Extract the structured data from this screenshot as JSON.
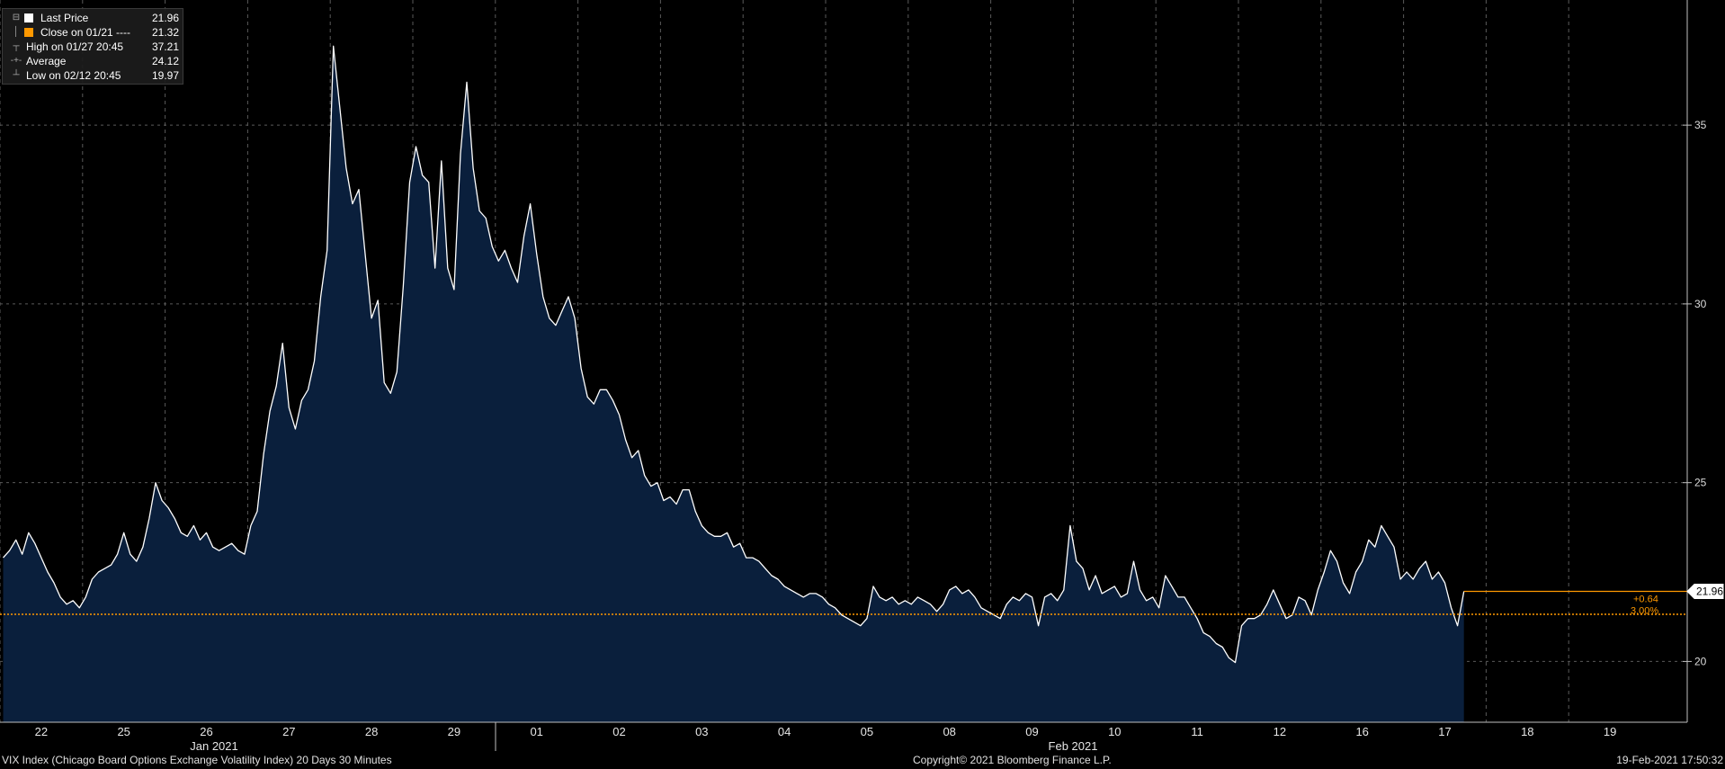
{
  "legend": {
    "last_price_label": "Last Price",
    "last_price_value": "21.96",
    "close_label": "Close on 01/21 ----",
    "close_value": "21.32",
    "high_label": "High on 01/27 20:45",
    "high_value": "37.21",
    "average_label": "Average",
    "average_value": "24.12",
    "low_label": "Low on 02/12 20:45",
    "low_value": "19.97"
  },
  "footer": {
    "security": "VIX Index (Chicago Board Options Exchange Volatility Index) 20 Days 30 Minutes",
    "copyright": "Copyright© 2021 Bloomberg Finance L.P.",
    "timestamp": "19-Feb-2021 17:50:32"
  },
  "colors": {
    "background": "#000000",
    "area_fill": "#0a1f3c",
    "line": "#ffffff",
    "reference": "#ff9900",
    "grid": "#5a5a5a"
  },
  "chart_data": {
    "type": "area",
    "x_tick_labels": [
      "22",
      "25",
      "26",
      "27",
      "28",
      "29",
      "01",
      "02",
      "03",
      "04",
      "05",
      "08",
      "09",
      "10",
      "11",
      "12",
      "16",
      "17",
      "18",
      "19"
    ],
    "month_labels": [
      "Jan 2021",
      "Feb 2021"
    ],
    "y_ticks": [
      20,
      25,
      30,
      35
    ],
    "ylim": [
      18.3,
      38.5
    ],
    "grid": true,
    "reference_line": {
      "label": "Close on 01/21",
      "value": 21.32
    },
    "last_value_label": "21.96",
    "change_label": "+0.64",
    "change_pct_label": "3.00%",
    "series": [
      {
        "name": "Last Price",
        "points_per_day": 13,
        "values": [
          22.9,
          23.1,
          23.4,
          23.0,
          23.6,
          23.3,
          22.9,
          22.5,
          22.2,
          21.8,
          21.6,
          21.7,
          21.5,
          21.8,
          22.3,
          22.5,
          22.6,
          22.7,
          23.0,
          23.6,
          23.0,
          22.8,
          23.2,
          24.0,
          25.0,
          24.5,
          24.3,
          24.0,
          23.6,
          23.5,
          23.8,
          23.4,
          23.6,
          23.2,
          23.1,
          23.2,
          23.3,
          23.1,
          23.0,
          23.8,
          24.2,
          25.8,
          27.0,
          27.7,
          28.9,
          27.1,
          26.5,
          27.3,
          27.6,
          28.4,
          30.2,
          31.5,
          37.21,
          35.5,
          33.8,
          32.8,
          33.2,
          31.4,
          29.6,
          30.1,
          27.8,
          27.5,
          28.1,
          30.5,
          33.4,
          34.4,
          33.6,
          33.4,
          31.0,
          34.0,
          31.0,
          30.4,
          34.2,
          36.2,
          33.8,
          32.6,
          32.4,
          31.6,
          31.2,
          31.5,
          31.0,
          30.6,
          31.9,
          32.8,
          31.4,
          30.2,
          29.6,
          29.4,
          29.8,
          30.2,
          29.6,
          28.2,
          27.4,
          27.2,
          27.6,
          27.6,
          27.3,
          26.9,
          26.2,
          25.7,
          25.9,
          25.2,
          24.9,
          25.0,
          24.5,
          24.6,
          24.4,
          24.8,
          24.8,
          24.2,
          23.8,
          23.6,
          23.5,
          23.5,
          23.6,
          23.2,
          23.3,
          22.9,
          22.9,
          22.8,
          22.6,
          22.4,
          22.3,
          22.1,
          22.0,
          21.9,
          21.8,
          21.9,
          21.9,
          21.8,
          21.6,
          21.5,
          21.3,
          21.2,
          21.1,
          21.0,
          21.2,
          22.1,
          21.8,
          21.7,
          21.8,
          21.6,
          21.7,
          21.6,
          21.8,
          21.7,
          21.6,
          21.4,
          21.6,
          22.0,
          22.1,
          21.9,
          22.0,
          21.8,
          21.5,
          21.4,
          21.3,
          21.2,
          21.6,
          21.8,
          21.7,
          21.9,
          21.8,
          21.0,
          21.8,
          21.9,
          21.7,
          22.0,
          23.8,
          22.8,
          22.6,
          22.0,
          22.4,
          21.9,
          22.0,
          22.1,
          21.8,
          21.9,
          22.8,
          22.0,
          21.7,
          21.8,
          21.5,
          22.4,
          22.1,
          21.8,
          21.8,
          21.5,
          21.2,
          20.8,
          20.7,
          20.5,
          20.4,
          20.1,
          19.97,
          21.0,
          21.2,
          21.2,
          21.3,
          21.6,
          22.0,
          21.6,
          21.2,
          21.3,
          21.8,
          21.7,
          21.3,
          22.0,
          22.5,
          23.1,
          22.8,
          22.2,
          21.9,
          22.5,
          22.8,
          23.4,
          23.2,
          23.8,
          23.5,
          23.2,
          22.3,
          22.5,
          22.3,
          22.6,
          22.8,
          22.3,
          22.5,
          22.2,
          21.5,
          21.0,
          21.96
        ]
      }
    ]
  }
}
